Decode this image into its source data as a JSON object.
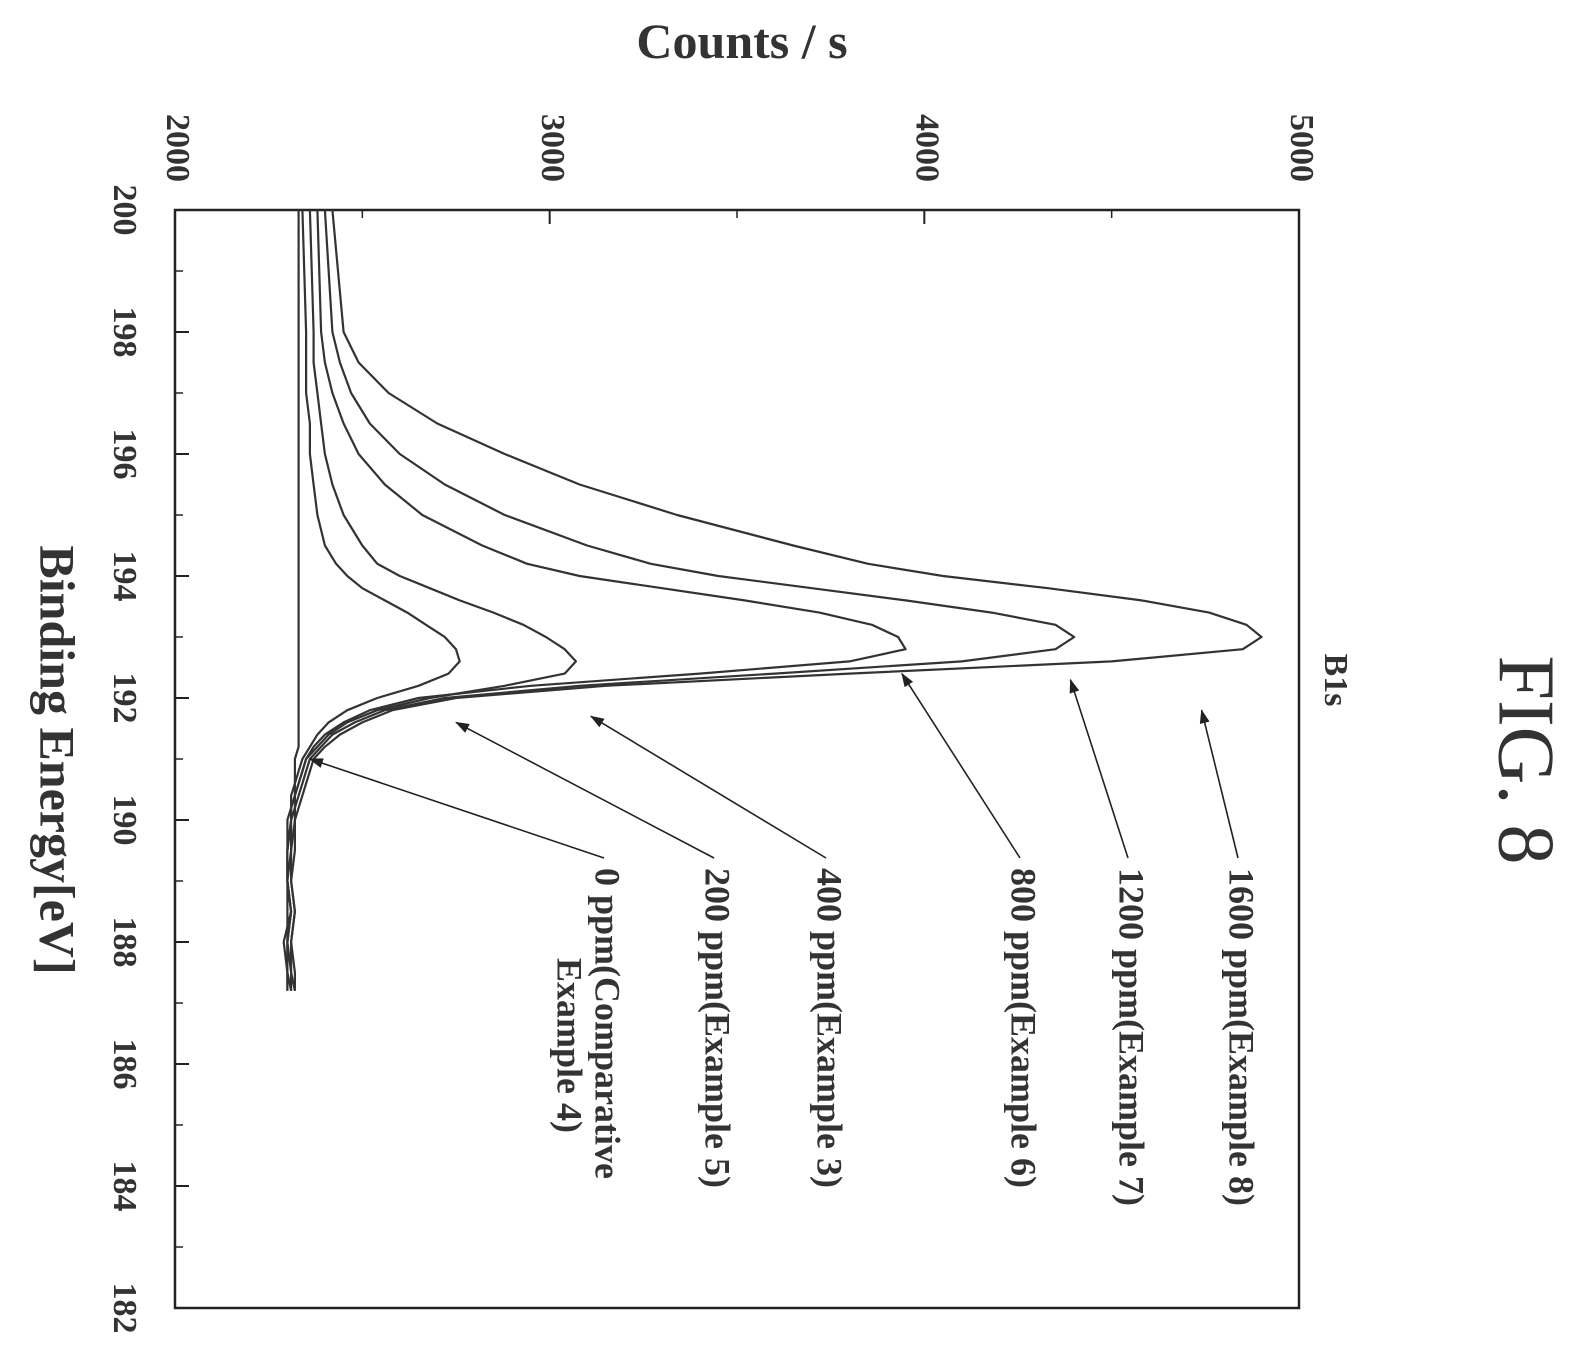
{
  "figure_label": "FIG. 8",
  "chart_data": {
    "type": "line",
    "title": "",
    "peak_label": "B1s",
    "xlabel": "Binding Energy[eV]",
    "ylabel": "Counts / s",
    "xlim": [
      200,
      182
    ],
    "ylim": [
      2000,
      5000
    ],
    "x_ticks": [
      200,
      198,
      196,
      194,
      192,
      190,
      188,
      186,
      184,
      182
    ],
    "y_ticks": [
      2000,
      3000,
      4000,
      5000
    ],
    "grid": false,
    "legend": "annotation labels with arrows, right of plot",
    "series": [
      {
        "name": "1600 ppm(Example 8)",
        "x": [
          200,
          198,
          197.5,
          197,
          196.5,
          196,
          195.5,
          195,
          194.5,
          194.2,
          194,
          193.8,
          193.6,
          193.4,
          193.2,
          193,
          192.8,
          192.6,
          192.4,
          192.2,
          192,
          191.8,
          191.6,
          191.4,
          191.2,
          191,
          190.8,
          190.6,
          190.4,
          190.2,
          190,
          189.5,
          189,
          188.5,
          188,
          187.5,
          187.2
        ],
        "y": [
          2420,
          2450,
          2490,
          2570,
          2700,
          2880,
          3080,
          3340,
          3650,
          3850,
          4050,
          4330,
          4580,
          4760,
          4860,
          4900,
          4850,
          4500,
          3800,
          3150,
          2750,
          2580,
          2500,
          2440,
          2400,
          2370,
          2360,
          2350,
          2340,
          2330,
          2320,
          2320,
          2310,
          2320,
          2310,
          2320,
          2320
        ]
      },
      {
        "name": "1200 ppm(Example 7)",
        "x": [
          200,
          198,
          197.5,
          197,
          196.5,
          196,
          195.5,
          195,
          194.5,
          194.2,
          194,
          193.8,
          193.6,
          193.4,
          193.2,
          193,
          192.8,
          192.6,
          192.4,
          192.2,
          192,
          191.8,
          191.6,
          191.4,
          191.2,
          191,
          190.8,
          190.6,
          190.4,
          190.2,
          190,
          189.5,
          189,
          188.5,
          188,
          187.5,
          187.2
        ],
        "y": [
          2400,
          2420,
          2440,
          2470,
          2520,
          2600,
          2720,
          2880,
          3100,
          3270,
          3450,
          3700,
          3950,
          4180,
          4350,
          4400,
          4350,
          4100,
          3600,
          3080,
          2720,
          2560,
          2480,
          2420,
          2390,
          2360,
          2350,
          2340,
          2330,
          2320,
          2320,
          2310,
          2310,
          2320,
          2310,
          2310,
          2320
        ]
      },
      {
        "name": "800 ppm(Example 6)",
        "x": [
          200,
          198,
          197.5,
          197,
          196.5,
          196,
          195.5,
          195,
          194.5,
          194.2,
          194,
          193.8,
          193.6,
          193.4,
          193.2,
          193,
          192.8,
          192.6,
          192.4,
          192.2,
          192,
          191.8,
          191.6,
          191.4,
          191.2,
          191,
          190.8,
          190.6,
          190.4,
          190.2,
          190,
          189.5,
          189,
          188.5,
          188,
          187.5,
          187.2
        ],
        "y": [
          2380,
          2390,
          2400,
          2420,
          2450,
          2490,
          2560,
          2660,
          2820,
          2940,
          3080,
          3300,
          3520,
          3720,
          3860,
          3930,
          3950,
          3800,
          3400,
          2950,
          2650,
          2520,
          2450,
          2400,
          2370,
          2350,
          2340,
          2330,
          2320,
          2320,
          2310,
          2310,
          2300,
          2310,
          2300,
          2310,
          2310
        ]
      },
      {
        "name": "400 ppm(Example 3)",
        "x": [
          200,
          198,
          197.5,
          197,
          196.5,
          196,
          195.5,
          195,
          194.5,
          194.2,
          194,
          193.8,
          193.6,
          193.4,
          193.2,
          193,
          192.8,
          192.6,
          192.4,
          192.2,
          192,
          191.8,
          191.6,
          191.4,
          191.2,
          191,
          190.8,
          190.6,
          190.4,
          190.2,
          190,
          189.5,
          189,
          188.5,
          188,
          187.5,
          187.2
        ],
        "y": [
          2360,
          2370,
          2370,
          2380,
          2390,
          2400,
          2420,
          2450,
          2500,
          2540,
          2600,
          2680,
          2760,
          2850,
          2930,
          2990,
          3040,
          3070,
          3040,
          2880,
          2680,
          2540,
          2460,
          2410,
          2380,
          2350,
          2340,
          2330,
          2320,
          2310,
          2310,
          2300,
          2300,
          2310,
          2300,
          2300,
          2310
        ]
      },
      {
        "name": "200 ppm(Example 5)",
        "x": [
          200,
          198,
          197.5,
          197,
          196.5,
          196,
          195.5,
          195,
          194.5,
          194.2,
          194,
          193.8,
          193.6,
          193.4,
          193.2,
          193,
          192.8,
          192.6,
          192.4,
          192.2,
          192,
          191.8,
          191.6,
          191.4,
          191.2,
          191,
          190.8,
          190.6,
          190.4,
          190.2,
          190,
          189.5,
          189,
          188.5,
          188,
          187.5,
          187.2
        ],
        "y": [
          2340,
          2350,
          2350,
          2350,
          2360,
          2360,
          2370,
          2380,
          2400,
          2430,
          2460,
          2500,
          2560,
          2620,
          2670,
          2720,
          2750,
          2760,
          2730,
          2650,
          2540,
          2460,
          2410,
          2380,
          2360,
          2340,
          2330,
          2320,
          2310,
          2310,
          2300,
          2300,
          2300,
          2310,
          2290,
          2300,
          2300
        ]
      },
      {
        "name": "0 ppm(Comparative Example 4)",
        "x": [
          200,
          198,
          197.5,
          197,
          196.5,
          196,
          195.5,
          195,
          194.5,
          194.2,
          194,
          193.8,
          193.6,
          193.4,
          193.2,
          193,
          192.8,
          192.6,
          192.4,
          192.2,
          192,
          191.8,
          191.6,
          191.4,
          191.2,
          191,
          190.8,
          190.6,
          190.4,
          190.2,
          190,
          189.5,
          189,
          188.5,
          188,
          187.5,
          187.2
        ],
        "y": [
          2330,
          2330,
          2330,
          2330,
          2330,
          2330,
          2330,
          2330,
          2330,
          2330,
          2330,
          2330,
          2330,
          2330,
          2330,
          2330,
          2330,
          2330,
          2330,
          2330,
          2330,
          2330,
          2330,
          2330,
          2330,
          2320,
          2320,
          2320,
          2320,
          2310,
          2310,
          2300,
          2300,
          2300,
          2300,
          2300,
          2300
        ]
      }
    ],
    "annotations": [
      {
        "text_lines": [
          "1600 ppm(Example 8)"
        ],
        "series": "1600 ppm(Example 8)",
        "x": 191.8,
        "y": 4740
      },
      {
        "text_lines": [
          "1200 ppm(Example 7)"
        ],
        "series": "1200 ppm(Example 7)",
        "x": 192.3,
        "y": 4390
      },
      {
        "text_lines": [
          "800 ppm(Example 6)"
        ],
        "series": "800 ppm(Example 6)",
        "x": 192.4,
        "y": 3940
      },
      {
        "text_lines": [
          "400 ppm(Example 3)"
        ],
        "series": "400 ppm(Example 3)",
        "x": 191.7,
        "y": 3110
      },
      {
        "text_lines": [
          "200 ppm(Example 5)"
        ],
        "series": "200 ppm(Example 5)",
        "x": 191.6,
        "y": 2750
      },
      {
        "text_lines": [
          "0 ppm(Comparative",
          "Example 4)"
        ],
        "series": "0 ppm(Comparative Example 4)",
        "x": 191.0,
        "y": 2360
      }
    ]
  }
}
